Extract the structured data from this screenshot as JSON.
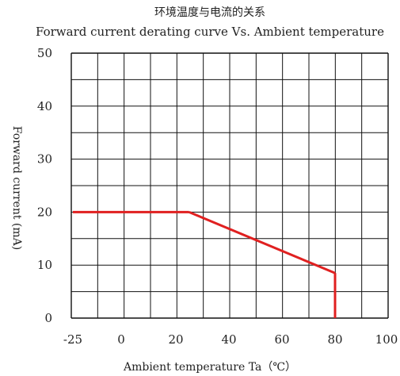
{
  "chart_data": {
    "type": "line",
    "title": "环境温度与电流的关系",
    "subtitle": "Forward current derating curve Vs. Ambient temperature",
    "xlabel": "Ambient temperature Ta（℃）",
    "ylabel": "Forward current (mA)",
    "xlim": [
      -25,
      100
    ],
    "ylim": [
      0,
      50
    ],
    "x_ticks": [
      "-25",
      "0",
      "20",
      "40",
      "60",
      "80",
      "100"
    ],
    "y_ticks": [
      "0",
      "10",
      "20",
      "30",
      "40",
      "50"
    ],
    "grid": true,
    "series": [
      {
        "color": "#e02020",
        "x": [
          -25,
          25,
          80,
          80
        ],
        "y": [
          20,
          20,
          8.5,
          0
        ]
      }
    ]
  }
}
